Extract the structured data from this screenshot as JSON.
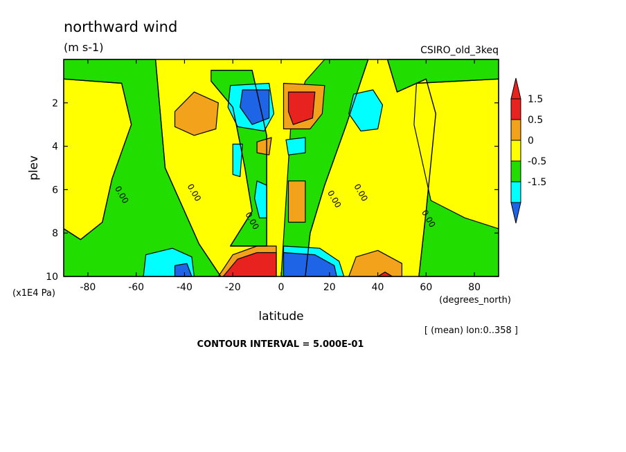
{
  "chart_data": {
    "type": "heatmap",
    "title": "northward wind",
    "units": "(m s-1)",
    "dataset": "CSIRO_old_3keq",
    "xlabel": "latitude",
    "xunits": "(degrees_north)",
    "ylabel": "plev",
    "yunits": "(x1E4 Pa)",
    "footnote": "[ (mean) lon:0..358 ]",
    "contour_interval": "CONTOUR INTERVAL = 5.000E-01",
    "xlim": [
      -90,
      90
    ],
    "ylim": [
      10,
      0
    ],
    "x_ticks": [
      -80,
      -60,
      -40,
      -20,
      0,
      20,
      40,
      60,
      80
    ],
    "x_tick_labels": [
      "-80",
      "-60",
      "-40",
      "-20",
      "0",
      "20",
      "40",
      "60",
      "80"
    ],
    "y_ticks": [
      2,
      4,
      6,
      8,
      10
    ],
    "y_tick_labels": [
      "2",
      "4",
      "6",
      "8",
      "10"
    ],
    "levels": [
      -1.5,
      -0.5,
      0,
      0.5,
      1.5
    ],
    "legend": [
      {
        "label": "1.5",
        "color": "#e8231f"
      },
      {
        "label": "0.5",
        "color": "#f2a31b"
      },
      {
        "label": "0",
        "color": "#ffff00"
      },
      {
        "label": "-0.5",
        "color": "#22dd00"
      },
      {
        "label": "-1.5",
        "color": "#00ffff"
      }
    ],
    "legend_bottom_color": "#1e64e6",
    "background_field": {
      "label": "0 to 0.5",
      "color": "#ffff00"
    },
    "regions": [
      {
        "label": "-0.5 to 0",
        "color": "#22dd00",
        "points": [
          [
            -90,
            0
          ],
          [
            -52,
            0
          ],
          [
            -48,
            5
          ],
          [
            -34,
            8.5
          ],
          [
            -25,
            10
          ],
          [
            -90,
            10
          ]
        ]
      },
      {
        "label": "0 to 0.5",
        "color": "#ffff00",
        "points": [
          [
            -90,
            0.9
          ],
          [
            -66,
            1.1
          ],
          [
            -62,
            3
          ],
          [
            -70,
            5.5
          ],
          [
            -74,
            7.5
          ],
          [
            -83,
            8.3
          ],
          [
            -90,
            7.8
          ]
        ]
      },
      {
        "label": "-0.5 to 0",
        "color": "#22dd00",
        "points": [
          [
            -29,
            0.5
          ],
          [
            -12,
            0.5
          ],
          [
            -6,
            3.5
          ],
          [
            -6,
            8.6
          ],
          [
            -21,
            8.6
          ],
          [
            -12,
            7
          ],
          [
            -15,
            5
          ],
          [
            -20,
            2.2
          ],
          [
            -29,
            1
          ]
        ]
      },
      {
        "label": "-0.5 to 0",
        "color": "#22dd00",
        "points": [
          [
            18,
            0
          ],
          [
            36,
            0
          ],
          [
            27,
            3
          ],
          [
            18,
            5.8
          ],
          [
            12,
            8
          ],
          [
            10,
            10
          ],
          [
            0,
            10
          ],
          [
            4,
            3
          ],
          [
            10,
            1
          ]
        ]
      },
      {
        "label": "-0.5 to 0",
        "color": "#22dd00",
        "points": [
          [
            44,
            0
          ],
          [
            90,
            0
          ],
          [
            90,
            10
          ],
          [
            57,
            10
          ],
          [
            60,
            7
          ],
          [
            64,
            2.5
          ],
          [
            60,
            0.9
          ],
          [
            48,
            1.5
          ]
        ]
      },
      {
        "label": "0 to 0.5",
        "color": "#ffff00",
        "points": [
          [
            56,
            1.1
          ],
          [
            90,
            0.9
          ],
          [
            90,
            7.8
          ],
          [
            76,
            7.3
          ],
          [
            62,
            6.5
          ],
          [
            55,
            3
          ]
        ]
      },
      {
        "label": "0.5 to 1.5",
        "color": "#f2a31b",
        "points": [
          [
            -44,
            2.4
          ],
          [
            -36,
            1.5
          ],
          [
            -26,
            2
          ],
          [
            -27,
            3.2
          ],
          [
            -36,
            3.5
          ],
          [
            -44,
            3.1
          ]
        ]
      },
      {
        "label": "-1.5 to -0.5",
        "color": "#00ffff",
        "points": [
          [
            -21,
            1.2
          ],
          [
            -5,
            1.1
          ],
          [
            -3,
            2.5
          ],
          [
            -7,
            3.3
          ],
          [
            -18,
            3.1
          ],
          [
            -22,
            2.2
          ]
        ]
      },
      {
        "label": "< -1.5",
        "color": "#1e64e6",
        "points": [
          [
            -16,
            1.4
          ],
          [
            -5,
            1.4
          ],
          [
            -5,
            2.7
          ],
          [
            -12,
            3
          ],
          [
            -17,
            2.2
          ]
        ]
      },
      {
        "label": "0.5 to 1.5",
        "color": "#f2a31b",
        "points": [
          [
            1,
            1.1
          ],
          [
            18,
            1.2
          ],
          [
            17,
            2.5
          ],
          [
            12,
            3.2
          ],
          [
            1,
            3.2
          ]
        ]
      },
      {
        "label": "> 1.5",
        "color": "#e8231f",
        "points": [
          [
            3,
            1.5
          ],
          [
            14,
            1.5
          ],
          [
            13,
            2.7
          ],
          [
            5,
            3
          ],
          [
            3,
            2.4
          ]
        ]
      },
      {
        "label": "-1.5 to -0.5",
        "color": "#00ffff",
        "points": [
          [
            30,
            1.6
          ],
          [
            38,
            1.4
          ],
          [
            42,
            2.1
          ],
          [
            40,
            3.2
          ],
          [
            33,
            3.3
          ],
          [
            28,
            2.5
          ]
        ]
      },
      {
        "label": "0.5 to 1.5",
        "color": "#f2a31b",
        "points": [
          [
            -10,
            3.8
          ],
          [
            -4,
            3.6
          ],
          [
            -5,
            4.4
          ],
          [
            -10,
            4.3
          ]
        ]
      },
      {
        "label": "-1.5 to -0.5",
        "color": "#00ffff",
        "points": [
          [
            2,
            3.7
          ],
          [
            10,
            3.6
          ],
          [
            10,
            4.3
          ],
          [
            3,
            4.4
          ]
        ]
      },
      {
        "label": "-1.5 to -0.5",
        "color": "#00ffff",
        "points": [
          [
            -20,
            3.9
          ],
          [
            -16,
            3.9
          ],
          [
            -17,
            5.4
          ],
          [
            -20,
            5.3
          ]
        ]
      },
      {
        "label": "-1.5 to -0.5",
        "color": "#00ffff",
        "points": [
          [
            -10,
            5.6
          ],
          [
            -6,
            5.8
          ],
          [
            -6,
            7.3
          ],
          [
            -9,
            7.3
          ],
          [
            -11,
            6.4
          ]
        ]
      },
      {
        "label": "0.5 to 1.5",
        "color": "#f2a31b",
        "points": [
          [
            3,
            5.6
          ],
          [
            10,
            5.6
          ],
          [
            10,
            7.5
          ],
          [
            3,
            7.5
          ]
        ]
      },
      {
        "label": "-1.5 to -0.5",
        "color": "#00ffff",
        "points": [
          [
            -56,
            9
          ],
          [
            -45,
            8.7
          ],
          [
            -37,
            9.1
          ],
          [
            -36,
            10
          ],
          [
            -57,
            10
          ]
        ]
      },
      {
        "label": "< -1.5",
        "color": "#1e64e6",
        "points": [
          [
            -44,
            9.5
          ],
          [
            -39,
            9.4
          ],
          [
            -37,
            10
          ],
          [
            -44,
            10
          ]
        ]
      },
      {
        "label": "0.5 to 1.5",
        "color": "#f2a31b",
        "points": [
          [
            -26,
            10
          ],
          [
            -20,
            9
          ],
          [
            -10,
            8.6
          ],
          [
            -2,
            8.6
          ],
          [
            -2,
            10
          ]
        ]
      },
      {
        "label": "> 1.5",
        "color": "#e8231f",
        "points": [
          [
            -24,
            10
          ],
          [
            -18,
            9.2
          ],
          [
            -10,
            8.9
          ],
          [
            -2,
            8.9
          ],
          [
            -2,
            10
          ]
        ]
      },
      {
        "label": "-1.5 to -0.5",
        "color": "#00ffff",
        "points": [
          [
            1,
            8.6
          ],
          [
            16,
            8.7
          ],
          [
            24,
            9.3
          ],
          [
            26,
            10
          ],
          [
            1,
            10
          ]
        ]
      },
      {
        "label": "< -1.5",
        "color": "#1e64e6",
        "points": [
          [
            1,
            8.9
          ],
          [
            14,
            9
          ],
          [
            22,
            9.5
          ],
          [
            23,
            10
          ],
          [
            1,
            10
          ]
        ]
      },
      {
        "label": "0.5 to 1.5",
        "color": "#f2a31b",
        "points": [
          [
            28,
            10
          ],
          [
            31,
            9.1
          ],
          [
            40,
            8.8
          ],
          [
            50,
            9.4
          ],
          [
            50,
            10
          ]
        ]
      },
      {
        "label": "> 1.5",
        "color": "#e8231f",
        "points": [
          [
            40,
            10
          ],
          [
            43,
            9.8
          ],
          [
            46,
            10
          ]
        ]
      }
    ],
    "zero_contours": [
      {
        "label": "0.00",
        "points": [
          [
            -90,
            0.9
          ],
          [
            -66,
            1.1
          ],
          [
            -62,
            3
          ],
          [
            -70,
            5.5
          ],
          [
            -74,
            7.5
          ],
          [
            -83,
            8.3
          ],
          [
            -90,
            7.8
          ]
        ]
      },
      {
        "label": "0.00",
        "points": [
          [
            -52,
            0
          ],
          [
            -48,
            5
          ],
          [
            -34,
            8.5
          ],
          [
            -25,
            10
          ]
        ]
      },
      {
        "label": "0.00",
        "points": [
          [
            -29,
            0.5
          ],
          [
            -12,
            0.5
          ],
          [
            -6,
            3.5
          ],
          [
            -6,
            8.6
          ],
          [
            -21,
            8.6
          ],
          [
            -12,
            7
          ],
          [
            -15,
            5
          ],
          [
            -20,
            2.2
          ],
          [
            -29,
            1
          ]
        ]
      },
      {
        "label": "0.00",
        "points": [
          [
            36,
            0
          ],
          [
            27,
            3
          ],
          [
            18,
            5.8
          ],
          [
            12,
            8
          ],
          [
            10,
            10
          ]
        ]
      },
      {
        "label": "0.00",
        "points": [
          [
            44,
            0
          ],
          [
            48,
            1.5
          ],
          [
            60,
            0.9
          ],
          [
            64,
            2.5
          ],
          [
            60,
            7
          ],
          [
            57,
            10
          ]
        ]
      },
      {
        "label": "0.00",
        "points": [
          [
            56,
            1.1
          ],
          [
            90,
            0.9
          ]
        ]
      }
    ],
    "contour_labels": [
      {
        "text": "0.00",
        "x": -67,
        "y": 6.3
      },
      {
        "text": "0.00",
        "x": -37,
        "y": 6.2
      },
      {
        "text": "0.00",
        "x": -13,
        "y": 7.5
      },
      {
        "text": "0.00",
        "x": 21,
        "y": 6.5
      },
      {
        "text": "0.00",
        "x": 32,
        "y": 6.2
      },
      {
        "text": "0.00",
        "x": 60,
        "y": 7.4
      }
    ]
  }
}
